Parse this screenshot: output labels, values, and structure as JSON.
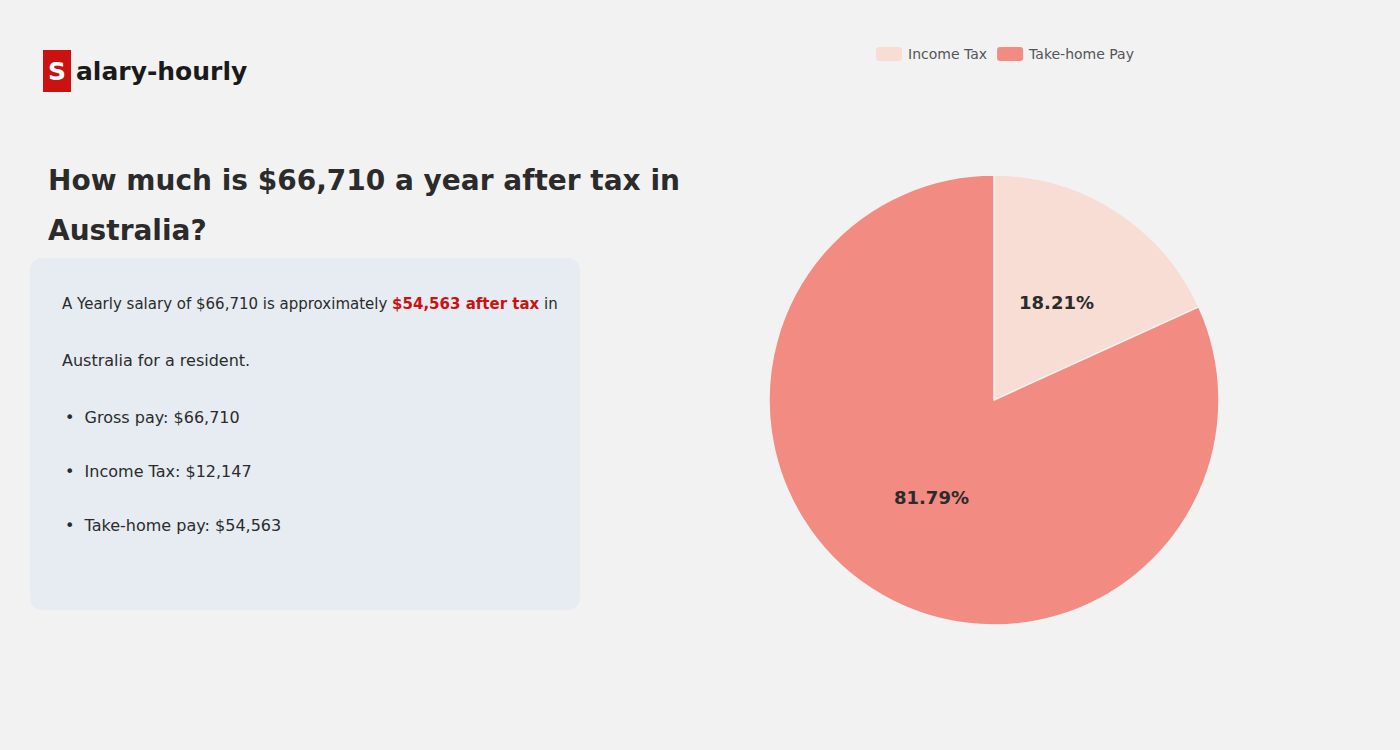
{
  "chart_data": {
    "type": "pie",
    "title": "How much is $66,710 a year after tax in\nAustralia?",
    "categories": [
      "Income Tax",
      "Take-home Pay"
    ],
    "values": [
      18.21,
      81.79
    ],
    "value_labels": [
      "18.21%",
      "81.79%"
    ],
    "colors": [
      "#f8ddd4",
      "#f28b82"
    ],
    "data_labels": true,
    "legend": "top",
    "background_color": "#f2f2f2",
    "panel_color": "#e6ecf2",
    "annotations": [
      {
        "text": "S",
        "color": "#ffffff",
        "background": "#cc1111"
      },
      {
        "text": "alary-hourly",
        "color": "#1a1a1a"
      },
      {
        "text": [
          "A Yearly salary of $66,710 is approximately ",
          "$54,563 after tax",
          " in"
        ],
        "colors": [
          "#2b2b2b",
          "#cc1111",
          "#2b2b2b"
        ]
      },
      {
        "text": "Australia for a resident.",
        "color": "#2b2b2b"
      },
      {
        "text": "•  Gross pay: $66,710",
        "color": "#2b2b2b"
      },
      {
        "text": "•  Income Tax: $12,147",
        "color": "#2b2b2b"
      },
      {
        "text": "•  Take-home pay: $54,563",
        "color": "#2b2b2b"
      }
    ]
  }
}
